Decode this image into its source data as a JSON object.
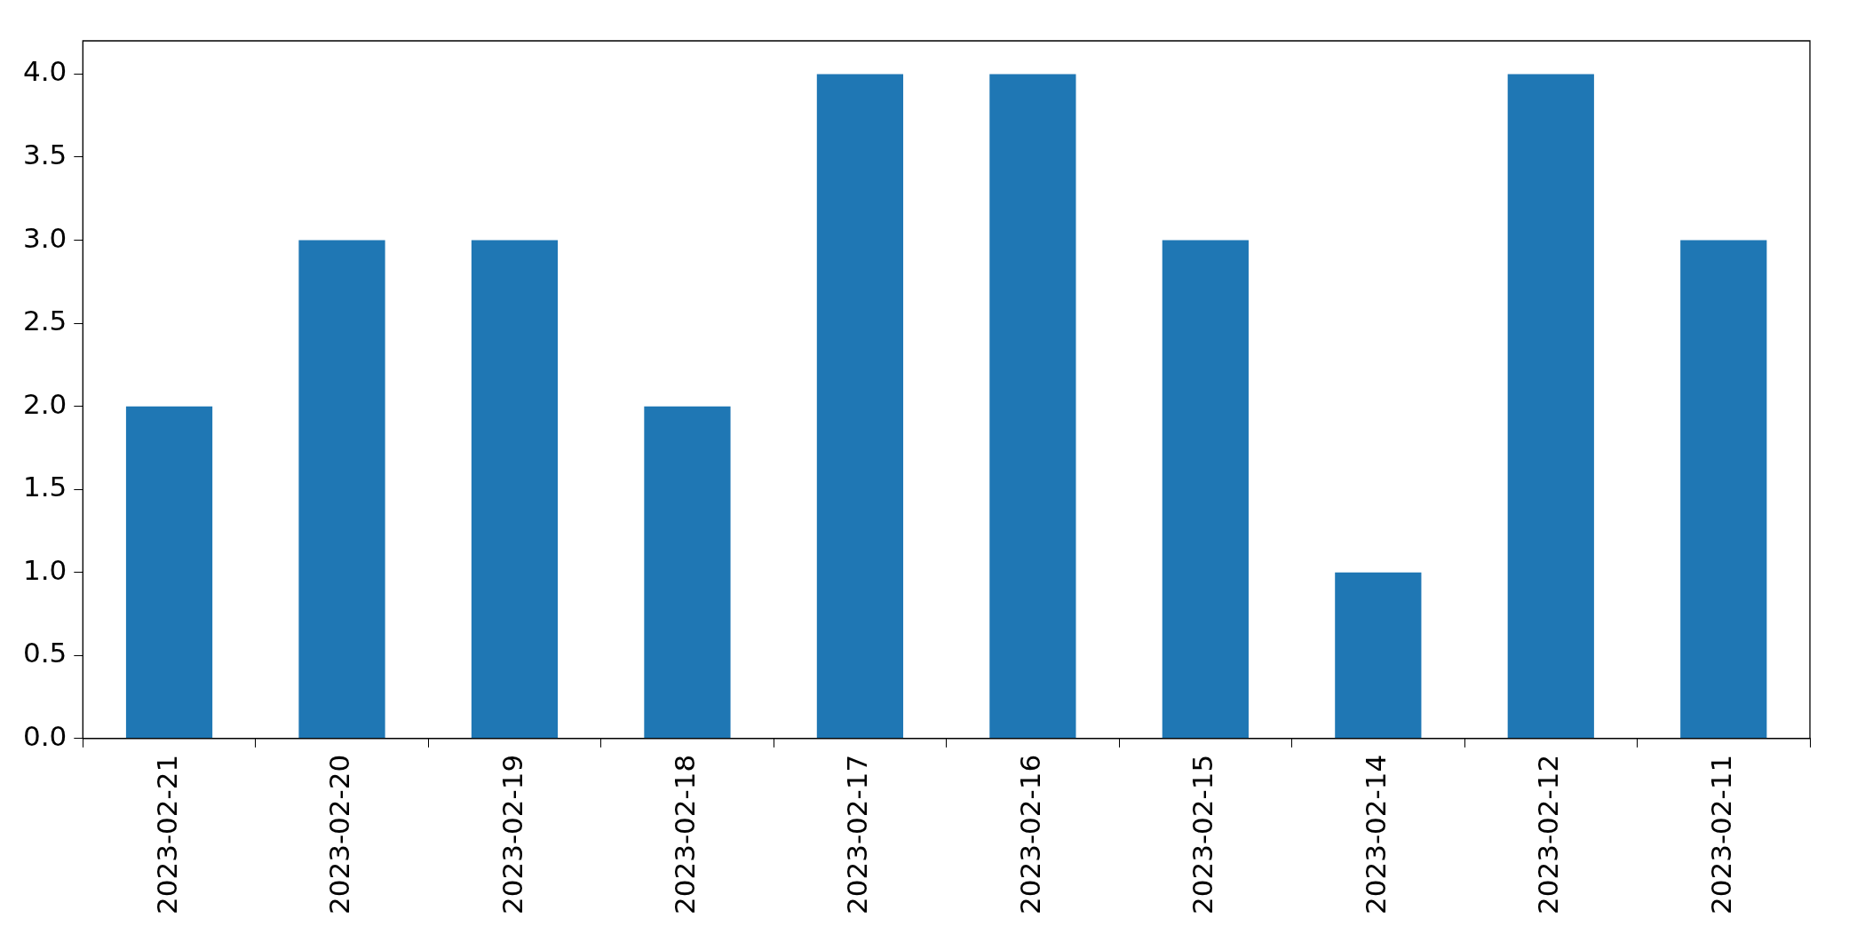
{
  "chart_data": {
    "type": "bar",
    "categories": [
      "2023-02-21",
      "2023-02-20",
      "2023-02-19",
      "2023-02-18",
      "2023-02-17",
      "2023-02-16",
      "2023-02-15",
      "2023-02-14",
      "2023-02-12",
      "2023-02-11"
    ],
    "values": [
      2,
      3,
      3,
      2,
      4,
      4,
      3,
      1,
      4,
      3
    ],
    "color": "#1f77b4",
    "ylim": [
      0,
      4.2
    ],
    "yticks": [
      {
        "value": 0,
        "label": "0.0"
      },
      {
        "value": 0.5,
        "label": "0.5"
      },
      {
        "value": 1,
        "label": "1.0"
      },
      {
        "value": 1.5,
        "label": "1.5"
      },
      {
        "value": 2,
        "label": "2.0"
      },
      {
        "value": 2.5,
        "label": "2.5"
      },
      {
        "value": 3,
        "label": "3.0"
      },
      {
        "value": 3.5,
        "label": "3.5"
      },
      {
        "value": 4,
        "label": "4.0"
      }
    ],
    "legend": false,
    "grid": false
  }
}
